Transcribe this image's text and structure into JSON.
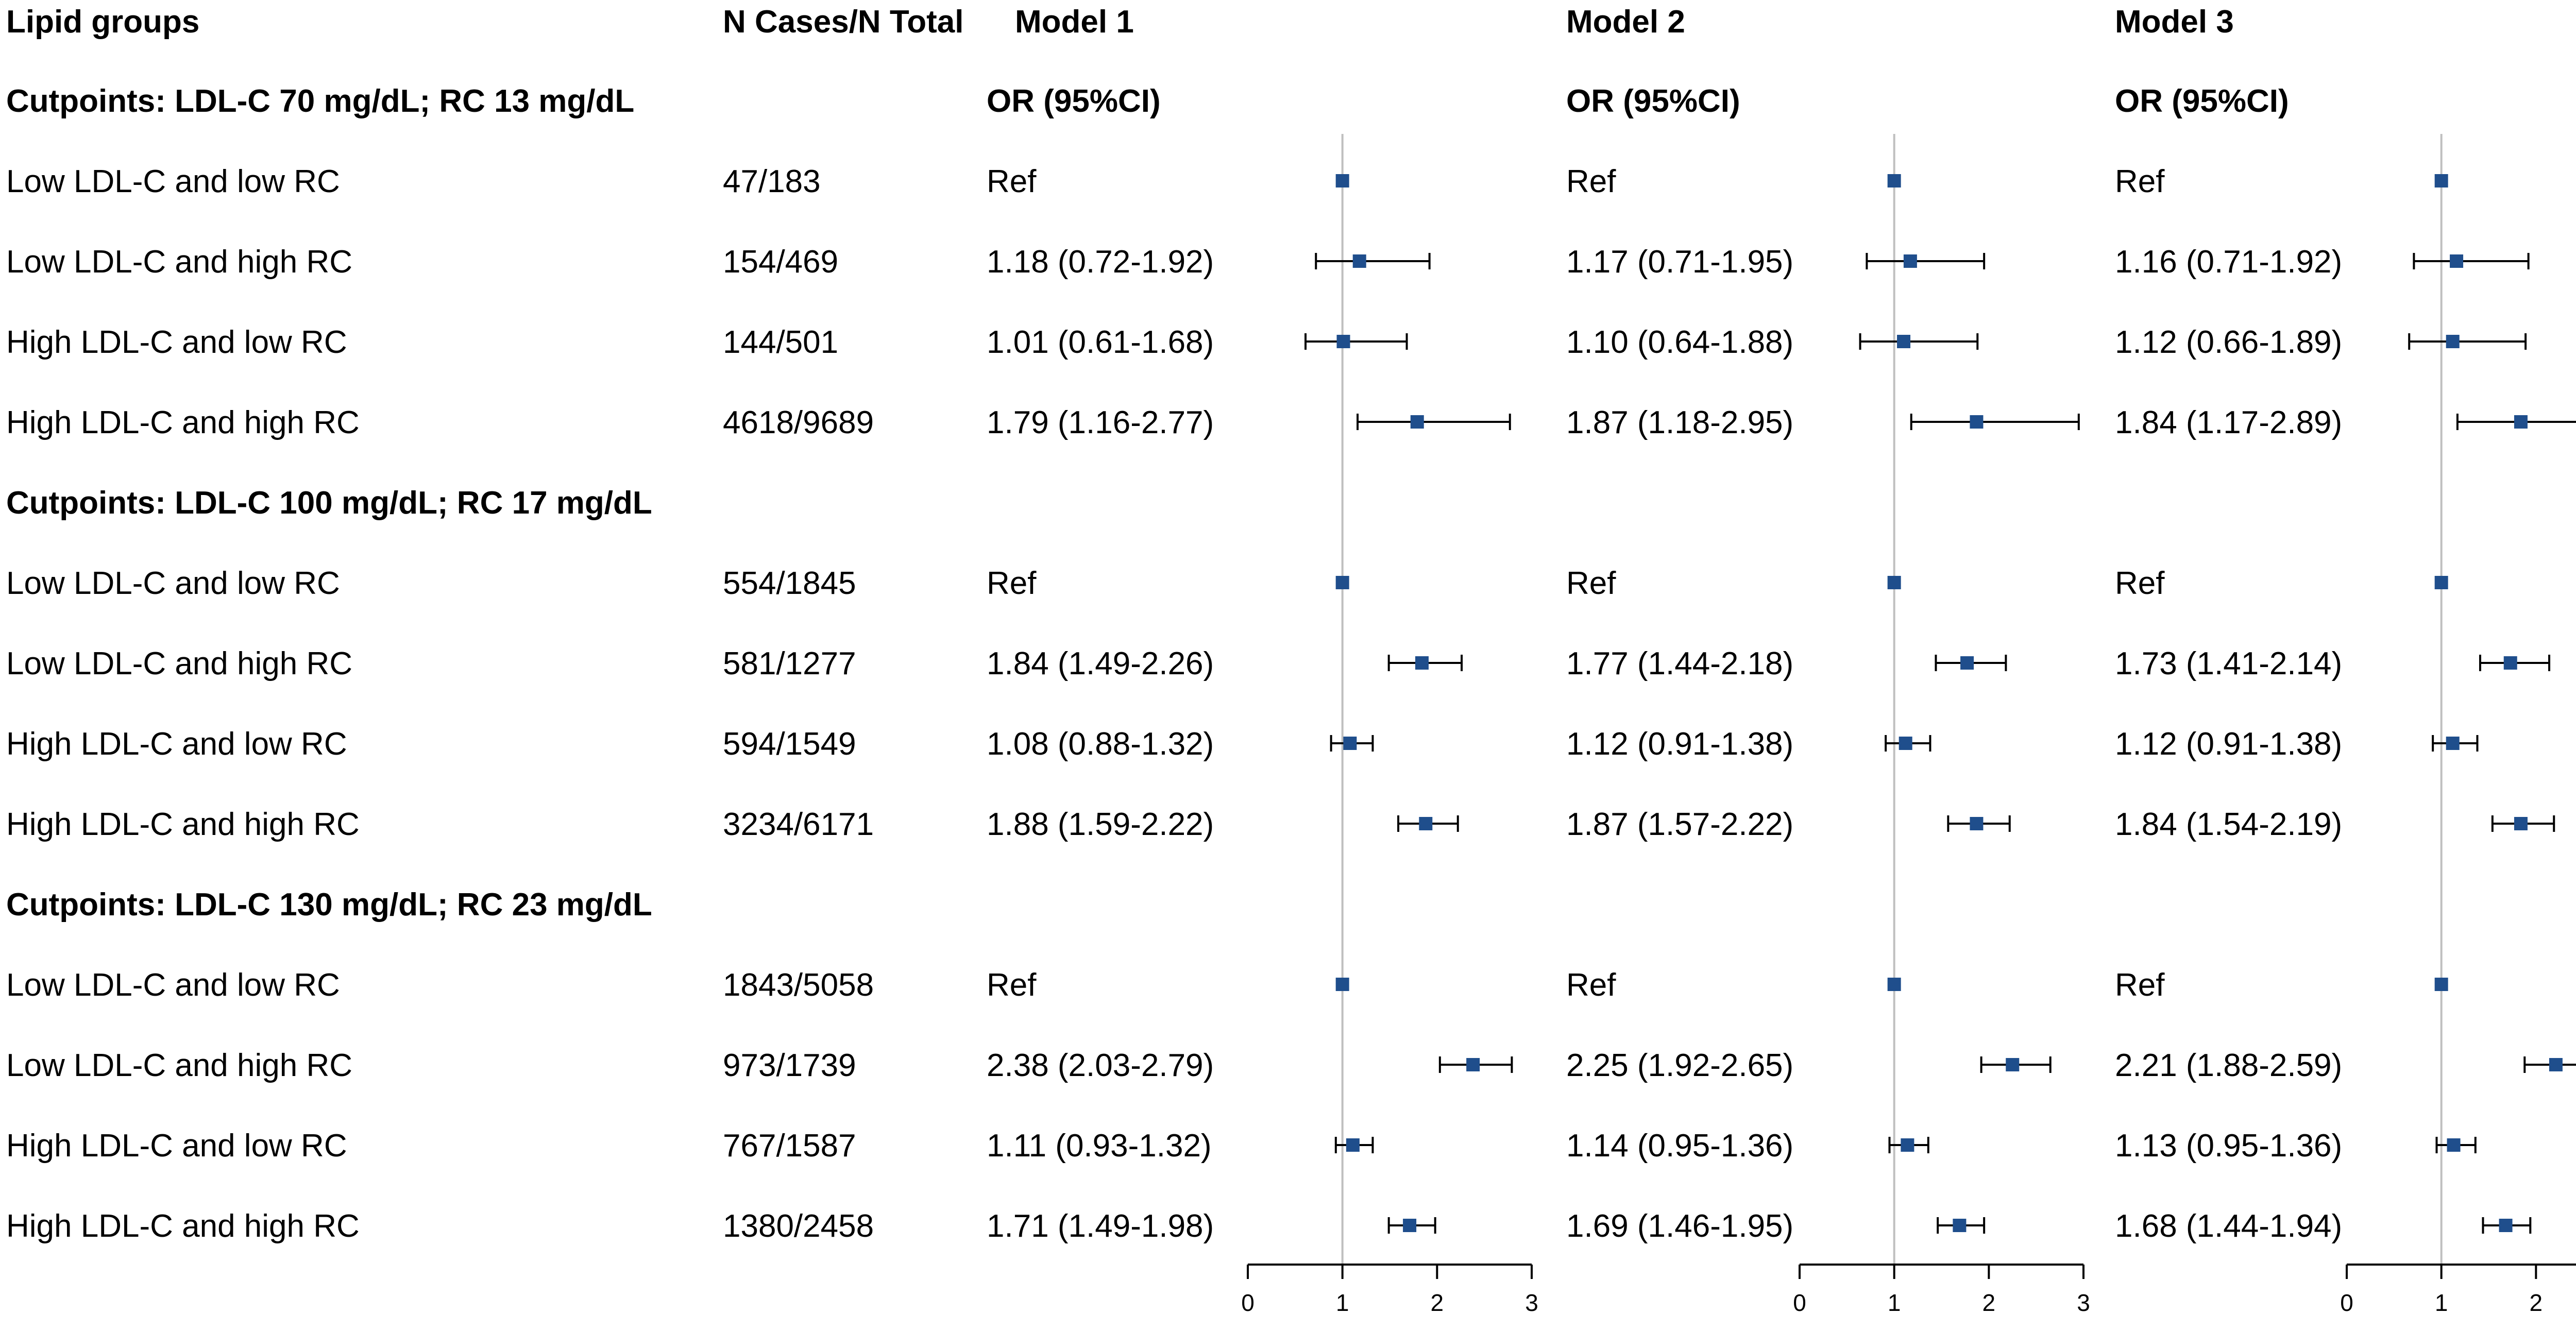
{
  "headers": {
    "lipid_groups": "Lipid groups",
    "n_cases": "N Cases/N Total",
    "model1": "Model 1",
    "model2": "Model 2",
    "model3": "Model 3",
    "or_ci": "OR (95%CI)"
  },
  "colors": {
    "marker": "#1f4e8c",
    "ref_line": "#bfbfbf",
    "whisker": "#000000"
  },
  "chart_data": {
    "type": "forest",
    "xlim": [
      0,
      3
    ],
    "xticks": [
      0,
      1,
      2,
      3
    ],
    "ref_value": 1,
    "models": [
      "Model 1",
      "Model 2",
      "Model 3"
    ],
    "groups": [
      {
        "label": "Cutpoints: LDL-C 70 mg/dL; RC 13 mg/dL",
        "rows": [
          {
            "name": "Low LDL-C and low RC",
            "n": "47/183",
            "est": [
              {
                "text": "Ref",
                "or": 1,
                "lo": 1,
                "hi": 1
              },
              {
                "text": "Ref",
                "or": 1,
                "lo": 1,
                "hi": 1
              },
              {
                "text": "Ref",
                "or": 1,
                "lo": 1,
                "hi": 1
              }
            ]
          },
          {
            "name": "Low LDL-C and high RC",
            "n": "154/469",
            "est": [
              {
                "text": "1.18 (0.72-1.92)",
                "or": 1.18,
                "lo": 0.72,
                "hi": 1.92
              },
              {
                "text": "1.17 (0.71-1.95)",
                "or": 1.17,
                "lo": 0.71,
                "hi": 1.95
              },
              {
                "text": "1.16 (0.71-1.92)",
                "or": 1.16,
                "lo": 0.71,
                "hi": 1.92
              }
            ]
          },
          {
            "name": "High LDL-C and low RC",
            "n": "144/501",
            "est": [
              {
                "text": "1.01 (0.61-1.68)",
                "or": 1.01,
                "lo": 0.61,
                "hi": 1.68
              },
              {
                "text": "1.10 (0.64-1.88)",
                "or": 1.1,
                "lo": 0.64,
                "hi": 1.88
              },
              {
                "text": "1.12 (0.66-1.89)",
                "or": 1.12,
                "lo": 0.66,
                "hi": 1.89
              }
            ]
          },
          {
            "name": "High LDL-C and high RC",
            "n": "4618/9689",
            "est": [
              {
                "text": "1.79 (1.16-2.77)",
                "or": 1.79,
                "lo": 1.16,
                "hi": 2.77
              },
              {
                "text": "1.87 (1.18-2.95)",
                "or": 1.87,
                "lo": 1.18,
                "hi": 2.95
              },
              {
                "text": "1.84 (1.17-2.89)",
                "or": 1.84,
                "lo": 1.17,
                "hi": 2.89
              }
            ]
          }
        ]
      },
      {
        "label": "Cutpoints: LDL-C 100 mg/dL; RC 17 mg/dL",
        "rows": [
          {
            "name": "Low LDL-C and low RC",
            "n": "554/1845",
            "est": [
              {
                "text": "Ref",
                "or": 1,
                "lo": 1,
                "hi": 1
              },
              {
                "text": "Ref",
                "or": 1,
                "lo": 1,
                "hi": 1
              },
              {
                "text": "Ref",
                "or": 1,
                "lo": 1,
                "hi": 1
              }
            ]
          },
          {
            "name": "Low LDL-C and high RC",
            "n": "581/1277",
            "est": [
              {
                "text": "1.84 (1.49-2.26)",
                "or": 1.84,
                "lo": 1.49,
                "hi": 2.26
              },
              {
                "text": "1.77 (1.44-2.18)",
                "or": 1.77,
                "lo": 1.44,
                "hi": 2.18
              },
              {
                "text": "1.73 (1.41-2.14)",
                "or": 1.73,
                "lo": 1.41,
                "hi": 2.14
              }
            ]
          },
          {
            "name": "High LDL-C and low RC",
            "n": "594/1549",
            "est": [
              {
                "text": "1.08 (0.88-1.32)",
                "or": 1.08,
                "lo": 0.88,
                "hi": 1.32
              },
              {
                "text": "1.12 (0.91-1.38)",
                "or": 1.12,
                "lo": 0.91,
                "hi": 1.38
              },
              {
                "text": "1.12 (0.91-1.38)",
                "or": 1.12,
                "lo": 0.91,
                "hi": 1.38
              }
            ]
          },
          {
            "name": "High LDL-C and high RC",
            "n": "3234/6171",
            "est": [
              {
                "text": "1.88 (1.59-2.22)",
                "or": 1.88,
                "lo": 1.59,
                "hi": 2.22
              },
              {
                "text": "1.87 (1.57-2.22)",
                "or": 1.87,
                "lo": 1.57,
                "hi": 2.22
              },
              {
                "text": "1.84 (1.54-2.19)",
                "or": 1.84,
                "lo": 1.54,
                "hi": 2.19
              }
            ]
          }
        ]
      },
      {
        "label": "Cutpoints: LDL-C 130 mg/dL; RC 23 mg/dL",
        "rows": [
          {
            "name": "Low LDL-C and low RC",
            "n": "1843/5058",
            "est": [
              {
                "text": "Ref",
                "or": 1,
                "lo": 1,
                "hi": 1
              },
              {
                "text": "Ref",
                "or": 1,
                "lo": 1,
                "hi": 1
              },
              {
                "text": "Ref",
                "or": 1,
                "lo": 1,
                "hi": 1
              }
            ]
          },
          {
            "name": "Low LDL-C and high RC",
            "n": "973/1739",
            "est": [
              {
                "text": "2.38 (2.03-2.79)",
                "or": 2.38,
                "lo": 2.03,
                "hi": 2.79
              },
              {
                "text": "2.25 (1.92-2.65)",
                "or": 2.25,
                "lo": 1.92,
                "hi": 2.65
              },
              {
                "text": "2.21 (1.88-2.59)",
                "or": 2.21,
                "lo": 1.88,
                "hi": 2.59
              }
            ]
          },
          {
            "name": "High LDL-C and low RC",
            "n": "767/1587",
            "est": [
              {
                "text": "1.11 (0.93-1.32)",
                "or": 1.11,
                "lo": 0.93,
                "hi": 1.32
              },
              {
                "text": "1.14 (0.95-1.36)",
                "or": 1.14,
                "lo": 0.95,
                "hi": 1.36
              },
              {
                "text": "1.13 (0.95-1.36)",
                "or": 1.13,
                "lo": 0.95,
                "hi": 1.36
              }
            ]
          },
          {
            "name": "High LDL-C and high RC",
            "n": "1380/2458",
            "est": [
              {
                "text": "1.71 (1.49-1.98)",
                "or": 1.71,
                "lo": 1.49,
                "hi": 1.98
              },
              {
                "text": "1.69 (1.46-1.95)",
                "or": 1.69,
                "lo": 1.46,
                "hi": 1.95
              },
              {
                "text": "1.68 (1.44-1.94)",
                "or": 1.68,
                "lo": 1.44,
                "hi": 1.94
              }
            ]
          }
        ]
      }
    ]
  }
}
